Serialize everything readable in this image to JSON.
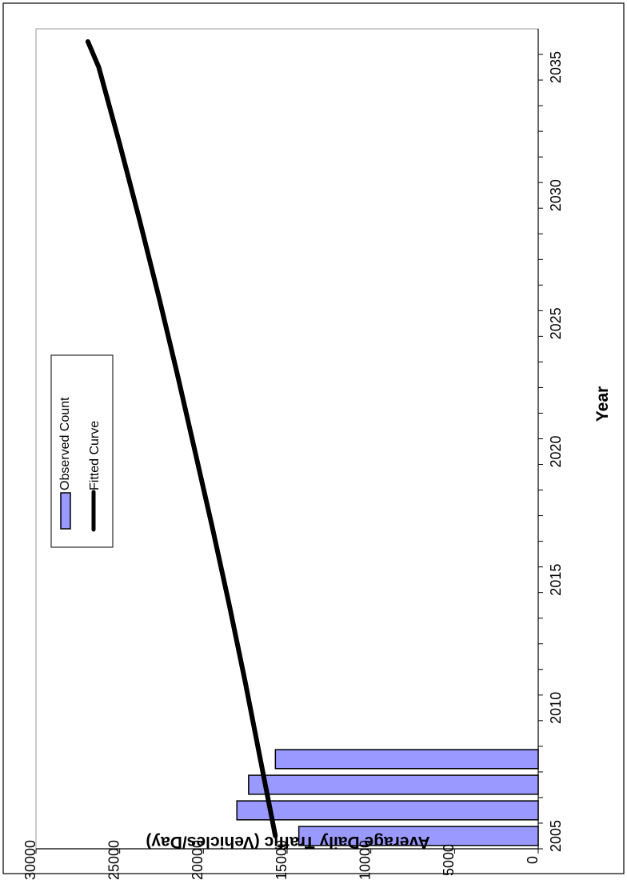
{
  "chart_data": {
    "type": "bar",
    "orientation": "rotated-90-clockwise",
    "xlabel": "Year",
    "ylabel": "Average Daily Traffic (Vehicles/Day)",
    "xlim": [
      2004.5,
      2036.5
    ],
    "ylim": [
      0,
      30000
    ],
    "x_ticks": [
      2005,
      2010,
      2015,
      2020,
      2025,
      2030,
      2035
    ],
    "y_ticks": [
      0,
      5000,
      10000,
      15000,
      20000,
      25000,
      30000
    ],
    "grid": false,
    "legend_position": "upper-left",
    "series": [
      {
        "name": "Observed Count",
        "type": "bar",
        "color": "#9999ff",
        "x": [
          2005,
          2006,
          2007,
          2008
        ],
        "values": [
          14300,
          18000,
          17300,
          15700
        ]
      },
      {
        "name": "Fitted Curve",
        "type": "line",
        "color": "#000000",
        "x": [
          2005,
          2008,
          2011,
          2014,
          2017,
          2020,
          2023,
          2026,
          2029,
          2032,
          2035,
          2036
        ],
        "values": [
          15700,
          16600,
          17500,
          18450,
          19450,
          20500,
          21550,
          22650,
          23800,
          25000,
          26250,
          26900
        ]
      }
    ]
  }
}
